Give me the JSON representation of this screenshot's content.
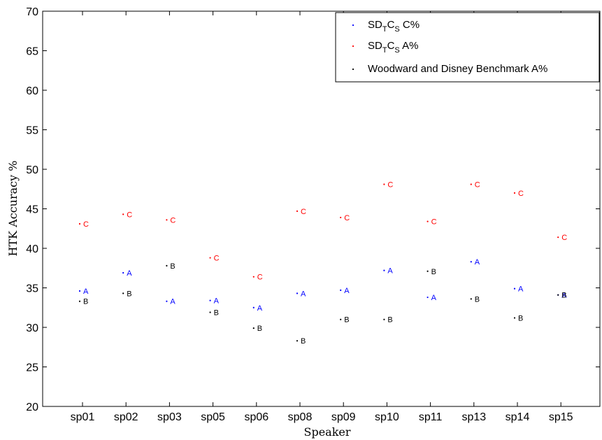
{
  "chart_data": {
    "type": "scatter",
    "xlabel": "Speaker",
    "ylabel": "HTK Accuracy %",
    "ylim": [
      20,
      70
    ],
    "yticks": [
      20,
      25,
      30,
      35,
      40,
      45,
      50,
      55,
      60,
      65,
      70
    ],
    "categories": [
      "sp01",
      "sp02",
      "sp03",
      "sp05",
      "sp06",
      "sp08",
      "sp09",
      "sp10",
      "sp11",
      "sp13",
      "sp14",
      "sp15"
    ],
    "grid": false,
    "legend_position": "top-right",
    "series": [
      {
        "key": "c",
        "label": "A",
        "color": "#0000ff",
        "values": [
          34.6,
          36.9,
          33.3,
          33.4,
          32.5,
          34.3,
          34.7,
          37.2,
          33.8,
          38.3,
          34.9,
          34.1
        ]
      },
      {
        "key": "a",
        "label": "C",
        "color": "#ff0000",
        "values": [
          43.1,
          44.3,
          43.6,
          38.8,
          36.4,
          44.7,
          43.9,
          48.1,
          43.4,
          48.1,
          47.0,
          41.4
        ]
      },
      {
        "key": "b",
        "label": "B",
        "color": "#000000",
        "values": [
          33.3,
          34.3,
          37.8,
          31.9,
          29.9,
          28.3,
          31.0,
          31.0,
          37.1,
          33.6,
          31.2,
          34.1
        ]
      }
    ],
    "legend": {
      "entries": [
        {
          "key": "c",
          "color": "#0000ff",
          "base": "SD",
          "sub1": "T",
          "mid": "C",
          "sub2": "S",
          "suffix": " C%"
        },
        {
          "key": "a",
          "color": "#ff0000",
          "base": "SD",
          "sub1": "T",
          "mid": "C",
          "sub2": "S",
          "suffix": " A%"
        },
        {
          "key": "b",
          "color": "#000000",
          "text": "Woodward and Disney Benchmark A%"
        }
      ]
    }
  }
}
